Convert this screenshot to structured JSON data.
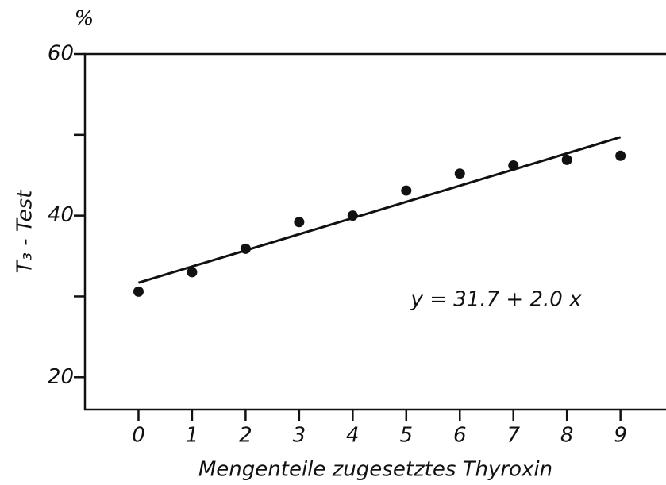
{
  "chart_data": {
    "type": "scatter",
    "y_unit": "%",
    "ylabel": "T₃ - Test",
    "xlabel": "Mengenteile  zugesetztes  Thyroxin",
    "annotation": "y = 31.7 + 2.0 x",
    "x": [
      0,
      1,
      2,
      3,
      4,
      5,
      6,
      7,
      8,
      9
    ],
    "values": [
      30.6,
      33.0,
      35.9,
      39.2,
      40.0,
      43.1,
      45.2,
      46.2,
      46.9,
      47.4
    ],
    "color": "#111111",
    "fit_line": {
      "x": [
        0,
        9
      ],
      "values": [
        31.7,
        49.7
      ]
    },
    "xlim": [
      -1,
      9.85
    ],
    "ylim": [
      16,
      60
    ],
    "xticks": [
      0,
      1,
      2,
      3,
      4,
      5,
      6,
      7,
      8,
      9
    ],
    "yticks": [
      20,
      40,
      60
    ],
    "minor_yticks": [
      30,
      50
    ]
  }
}
